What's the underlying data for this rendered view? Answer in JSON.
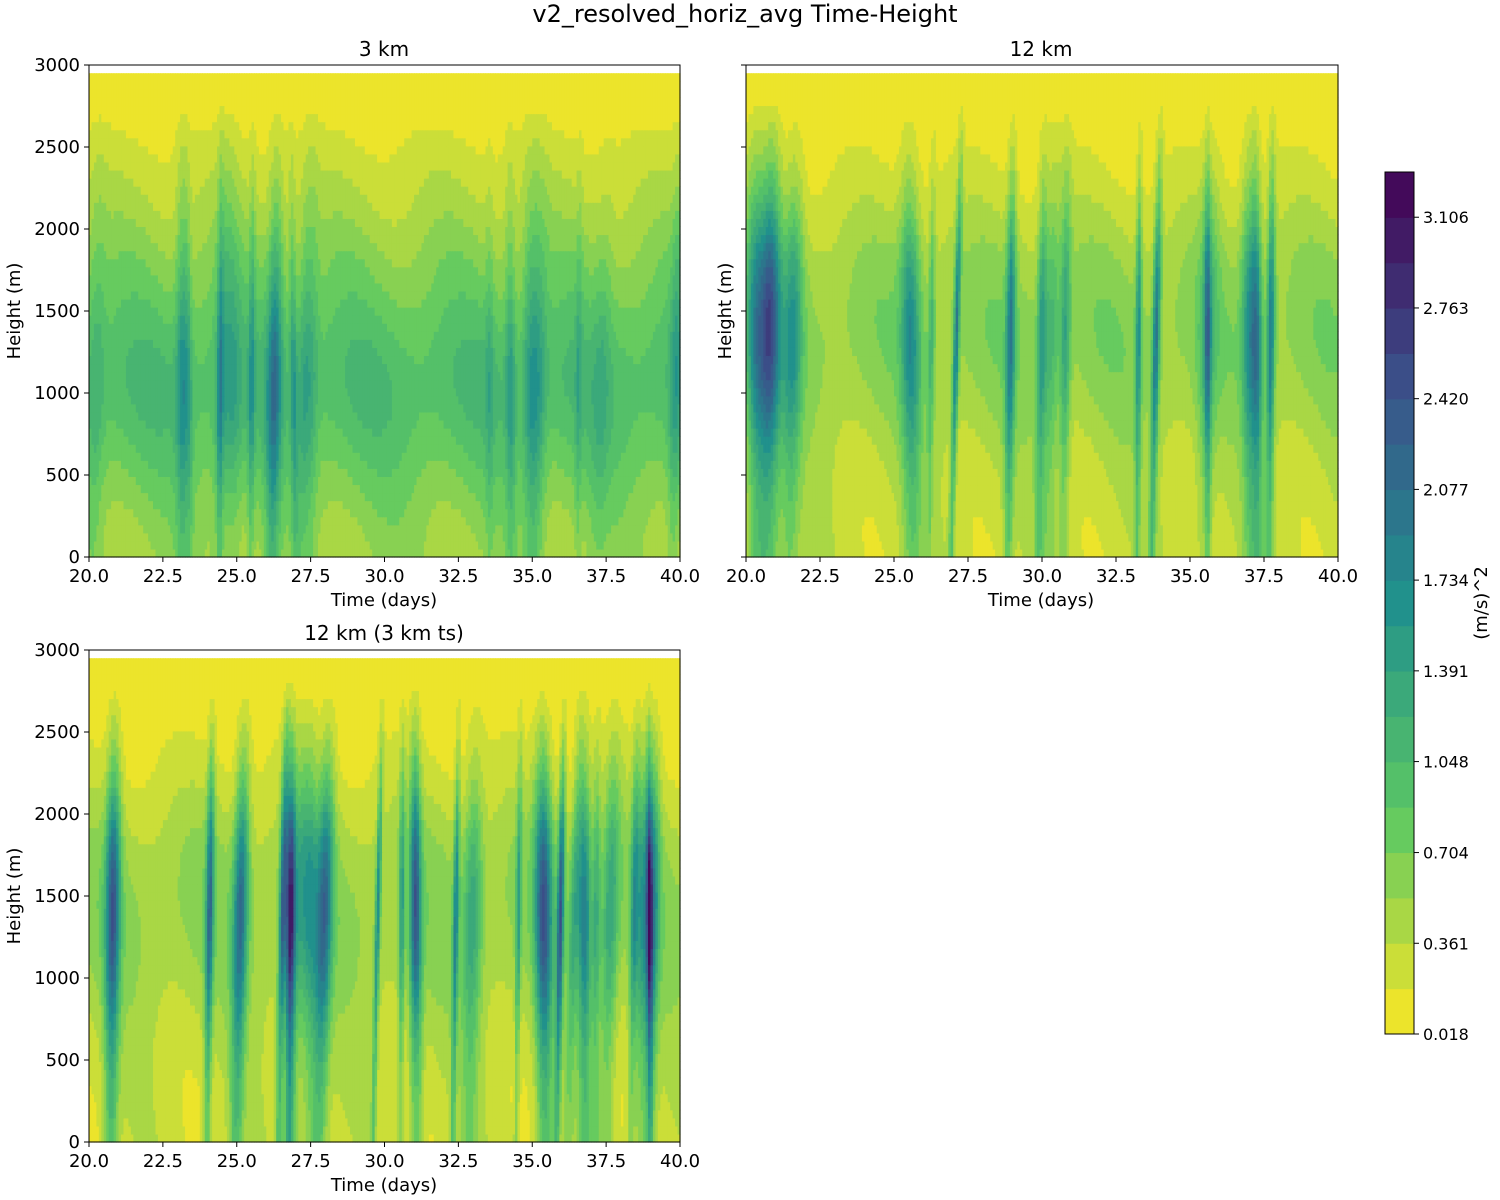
{
  "figure_title": "v2_resolved_horiz_avg Time-Height",
  "colormap": [
    "#fde725",
    "#5ec962",
    "#21918c",
    "#3b528b",
    "#440154"
  ],
  "chart_data": [
    {
      "type": "heatmap",
      "title": "3 km",
      "xlabel": "Time (days)",
      "ylabel": "Height (m)",
      "xlim": [
        20,
        40
      ],
      "ylim": [
        0,
        3000
      ],
      "data_top": 2950,
      "xticks": [
        "20.0",
        "22.5",
        "25.0",
        "27.5",
        "30.0",
        "32.5",
        "35.0",
        "37.5",
        "40.0"
      ],
      "yticks": [
        "0",
        "500",
        "1000",
        "1500",
        "2000",
        "2500",
        "3000"
      ],
      "peak_height": 1050,
      "base_level": 1.05,
      "streak_amplitude": 0.35,
      "streak_count": 20
    },
    {
      "type": "heatmap",
      "title": "12 km",
      "xlabel": "Time (days)",
      "ylabel": "Height (m)",
      "xlim": [
        20,
        40
      ],
      "ylim": [
        0,
        3000
      ],
      "data_top": 2950,
      "xticks": [
        "20.0",
        "22.5",
        "25.0",
        "27.5",
        "30.0",
        "32.5",
        "35.0",
        "37.5",
        "40.0"
      ],
      "yticks": [],
      "peak_height": 1350,
      "base_level": 1.0,
      "streak_amplitude": 0.75,
      "streak_count": 18
    },
    {
      "type": "heatmap",
      "title": "12 km (3 km ts)",
      "xlabel": "Time (days)",
      "ylabel": "Height (m)",
      "xlim": [
        20,
        40
      ],
      "ylim": [
        0,
        3000
      ],
      "data_top": 2950,
      "xticks": [
        "20.0",
        "22.5",
        "25.0",
        "27.5",
        "30.0",
        "32.5",
        "35.0",
        "37.5",
        "40.0"
      ],
      "yticks": [
        "0",
        "500",
        "1000",
        "1500",
        "2000",
        "2500",
        "3000"
      ],
      "peak_height": 1400,
      "base_level": 1.1,
      "streak_amplitude": 0.95,
      "streak_count": 26
    }
  ],
  "colorbar": {
    "label": "(m/s)^2",
    "vmin": 0.018,
    "vmax": 3.277,
    "levels": 19,
    "ticks": [
      "0.018",
      "0.361",
      "0.704",
      "1.048",
      "1.391",
      "1.734",
      "2.077",
      "2.420",
      "2.763",
      "3.106"
    ]
  }
}
